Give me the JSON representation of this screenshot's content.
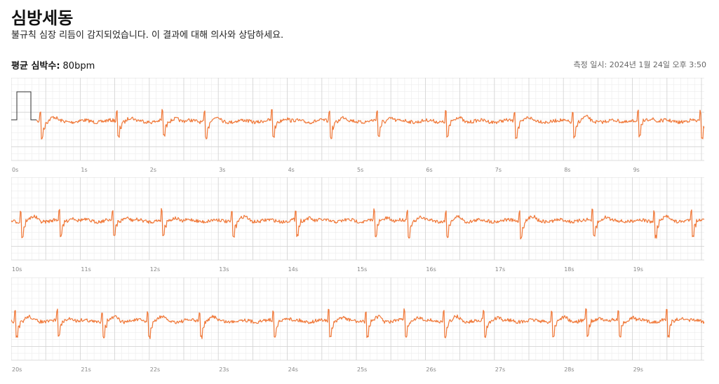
{
  "header": {
    "title": "심방세동",
    "subtitle": "불규칙 심장 리듬이 감지되었습니다. 이 결과에 대해 의사와 상담하세요."
  },
  "summary": {
    "heart_rate_label": "평균 심박수:",
    "heart_rate_value": "80bpm",
    "timestamp": "측정 일시: 2024년 1월 24일 오후 3:50"
  },
  "colors": {
    "trace": "#f07838",
    "grid_minor": "#ececec",
    "grid_major": "#d2d2d2",
    "calibration": "#333333"
  },
  "strips": [
    {
      "ticks": [
        "0s",
        "1s",
        "2s",
        "3s",
        "4s",
        "5s",
        "6s",
        "7s",
        "8s",
        "9s"
      ]
    },
    {
      "ticks": [
        "10s",
        "11s",
        "12s",
        "13s",
        "14s",
        "15s",
        "16s",
        "17s",
        "18s",
        "19s"
      ]
    },
    {
      "ticks": [
        "20s",
        "21s",
        "22s",
        "23s",
        "24s",
        "25s",
        "26s",
        "27s",
        "28s",
        "29s"
      ]
    }
  ]
}
